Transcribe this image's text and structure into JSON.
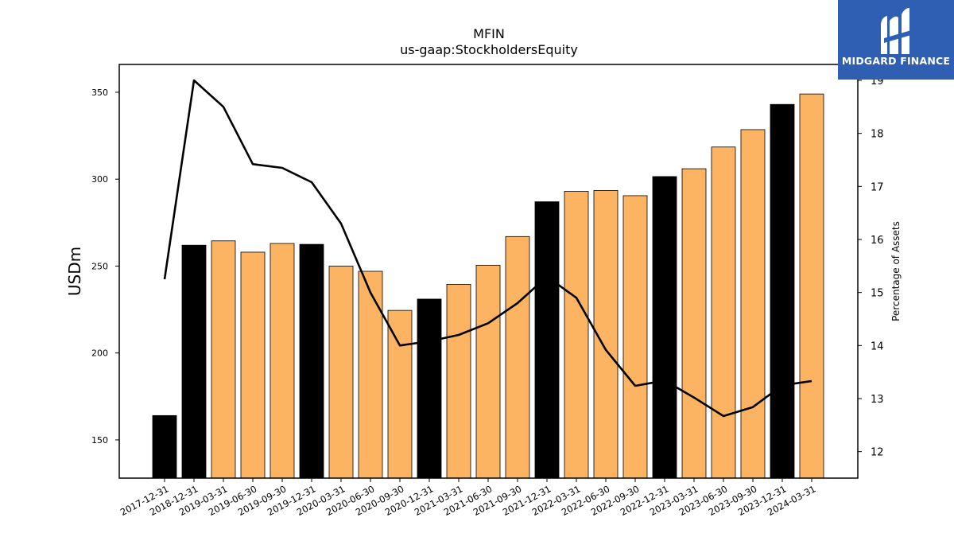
{
  "chart_data": {
    "type": "bar",
    "title": "MFIN",
    "subtitle": "us-gaap:StockholdersEquity",
    "ylabel": "USDm",
    "y2label": "Percentage of Assets",
    "ylim": [
      128,
      366
    ],
    "y2lim": [
      11.5,
      19.3
    ],
    "yticks": [
      150,
      200,
      250,
      300,
      350
    ],
    "y2ticks": [
      12,
      13,
      14,
      15,
      16,
      17,
      18,
      19
    ],
    "categories": [
      "2017-12-31",
      "2018-12-31",
      "2019-03-31",
      "2019-06-30",
      "2019-09-30",
      "2019-12-31",
      "2020-03-31",
      "2020-06-30",
      "2020-09-30",
      "2020-12-31",
      "2021-03-31",
      "2021-06-30",
      "2021-09-30",
      "2021-12-31",
      "2022-03-31",
      "2022-06-30",
      "2022-09-30",
      "2022-12-31",
      "2023-03-31",
      "2023-06-30",
      "2023-09-30",
      "2023-12-31",
      "2024-03-31"
    ],
    "series": [
      {
        "type": "bar",
        "values": [
          164,
          262,
          264.5,
          258,
          263,
          262.5,
          250,
          247,
          224.5,
          231,
          239.5,
          250.5,
          267,
          287,
          293,
          293.5,
          290.5,
          301.5,
          306,
          318.5,
          328.5,
          343,
          349
        ],
        "highlight": [
          true,
          true,
          false,
          false,
          false,
          true,
          false,
          false,
          false,
          true,
          false,
          false,
          false,
          true,
          false,
          false,
          false,
          true,
          false,
          false,
          false,
          true,
          false
        ],
        "color": "#fdb462",
        "highlight_color": "#000000"
      },
      {
        "type": "line",
        "axis": "right",
        "values": [
          15.25,
          19.0,
          18.5,
          17.42,
          17.35,
          17.08,
          16.3,
          15.0,
          14.0,
          14.08,
          14.2,
          14.42,
          14.8,
          15.3,
          14.9,
          13.92,
          13.24,
          13.34,
          13.02,
          12.67,
          12.84,
          13.25,
          13.33
        ],
        "color": "#000000"
      }
    ]
  },
  "logo": {
    "text": "MIDGARD FINANCE",
    "icon": "midgard-m-logo-icon",
    "background": "#2f5fb3"
  }
}
